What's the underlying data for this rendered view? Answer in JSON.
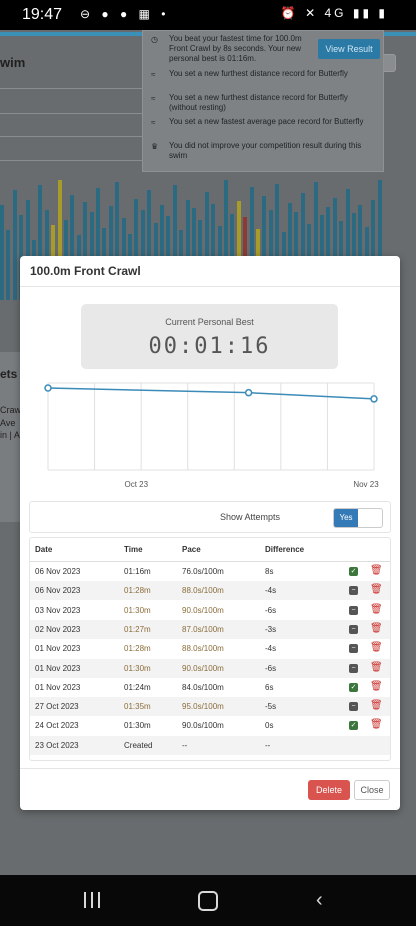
{
  "status_bar": {
    "time": "19:47",
    "network": "4G"
  },
  "background": {
    "title_fragment": "wim",
    "sets_fragment": "ets",
    "left_text": [
      "Crawl",
      "Ave",
      "in | A"
    ]
  },
  "notification": {
    "view_button": "View Result",
    "items": [
      {
        "icon": "stopwatch-icon",
        "text": "You beat your fastest time for 100.0m Front Crawl by 8s seconds. Your new personal best is 01:16m."
      },
      {
        "icon": "wave-icon",
        "text": "You set a new furthest distance record for Butterfly"
      },
      {
        "icon": "wave-icon",
        "text": "You set a new furthest distance record for Butterfly (without resting)"
      },
      {
        "icon": "wave-icon",
        "text": "You set a new fastest average pace record for Butterfly"
      },
      {
        "icon": "trophy-icon",
        "text": "You did not improve your competition result during this swim"
      }
    ]
  },
  "modal": {
    "title": "100.0m Front Crawl",
    "personal_best_label": "Current Personal Best",
    "personal_best_value": "00:01:16",
    "chart_data": {
      "type": "line",
      "x": [
        "24 Oct 2023",
        "01 Nov 2023",
        "06 Nov 2023"
      ],
      "y": [
        90,
        84,
        76
      ],
      "x_tick_labels": [
        "Oct 23",
        "Nov 23"
      ],
      "grid": true,
      "accent": "#3b8bb8"
    },
    "show_attempts_label": "Show Attempts",
    "toggle_on_label": "Yes",
    "columns": [
      "Date",
      "Time",
      "Pace",
      "Difference"
    ],
    "rows": [
      {
        "date": "06 Nov 2023",
        "time": "01:16m",
        "pace": "76.0s/100m",
        "diff": "8s",
        "status": "best"
      },
      {
        "date": "06 Nov 2023",
        "time": "01:28m",
        "pace": "88.0s/100m",
        "diff": "-4s",
        "status": "slower"
      },
      {
        "date": "03 Nov 2023",
        "time": "01:30m",
        "pace": "90.0s/100m",
        "diff": "-6s",
        "status": "slower"
      },
      {
        "date": "02 Nov 2023",
        "time": "01:27m",
        "pace": "87.0s/100m",
        "diff": "-3s",
        "status": "slower"
      },
      {
        "date": "01 Nov 2023",
        "time": "01:28m",
        "pace": "88.0s/100m",
        "diff": "-4s",
        "status": "slower"
      },
      {
        "date": "01 Nov 2023",
        "time": "01:30m",
        "pace": "90.0s/100m",
        "diff": "-6s",
        "status": "slower"
      },
      {
        "date": "01 Nov 2023",
        "time": "01:24m",
        "pace": "84.0s/100m",
        "diff": "6s",
        "status": "best"
      },
      {
        "date": "27 Oct 2023",
        "time": "01:35m",
        "pace": "95.0s/100m",
        "diff": "-5s",
        "status": "slower"
      },
      {
        "date": "24 Oct 2023",
        "time": "01:30m",
        "pace": "90.0s/100m",
        "diff": "0s",
        "status": "best"
      },
      {
        "date": "23 Oct 2023",
        "time": "Created",
        "pace": "--",
        "diff": "--",
        "status": "created"
      }
    ],
    "delete_label": "Delete",
    "close_label": "Close"
  },
  "colors": {
    "primary": "#337ab7",
    "danger": "#d9534f",
    "success": "#3c763d",
    "warning_text": "#8a6d3b"
  }
}
